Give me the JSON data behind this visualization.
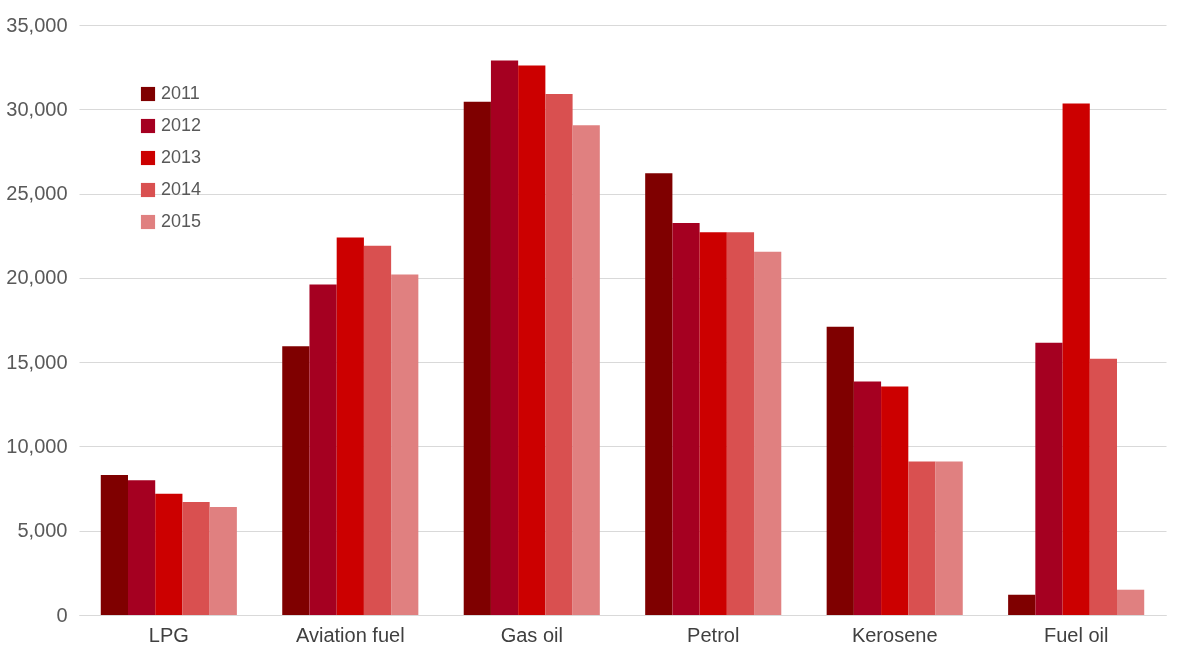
{
  "chart_data": {
    "type": "bar",
    "categories": [
      "LPG",
      "Aviation fuel",
      "Gas oil",
      "Petrol",
      "Kerosene",
      "Fuel oil"
    ],
    "series": [
      {
        "name": "2011",
        "color": "#7f0000",
        "values": [
          8300,
          15950,
          30450,
          26200,
          17100,
          1200
        ]
      },
      {
        "name": "2012",
        "color": "#a50021",
        "values": [
          8000,
          19600,
          32900,
          23250,
          13850,
          16150
        ]
      },
      {
        "name": "2013",
        "color": "#cc0000",
        "values": [
          7200,
          22400,
          32600,
          22700,
          13550,
          30350
        ]
      },
      {
        "name": "2014",
        "color": "#d95050",
        "values": [
          6700,
          21900,
          30900,
          22700,
          9100,
          15200
        ]
      },
      {
        "name": "2015",
        "color": "#e08080",
        "values": [
          6400,
          20200,
          29050,
          21550,
          9100,
          1500
        ]
      }
    ],
    "ylim": [
      0,
      35000
    ],
    "yticks": [
      0,
      {
        "value": 5000,
        "label": "5,000"
      },
      {
        "value": 10000,
        "label": "10,000"
      },
      {
        "value": 15000,
        "label": "15,000"
      },
      {
        "value": 20000,
        "label": "20,000"
      },
      {
        "value": 25000,
        "label": "25,000"
      },
      {
        "value": 30000,
        "label": "30,000"
      },
      {
        "value": 35000,
        "label": "35,000"
      }
    ],
    "grid": "y",
    "legend": "top left"
  }
}
